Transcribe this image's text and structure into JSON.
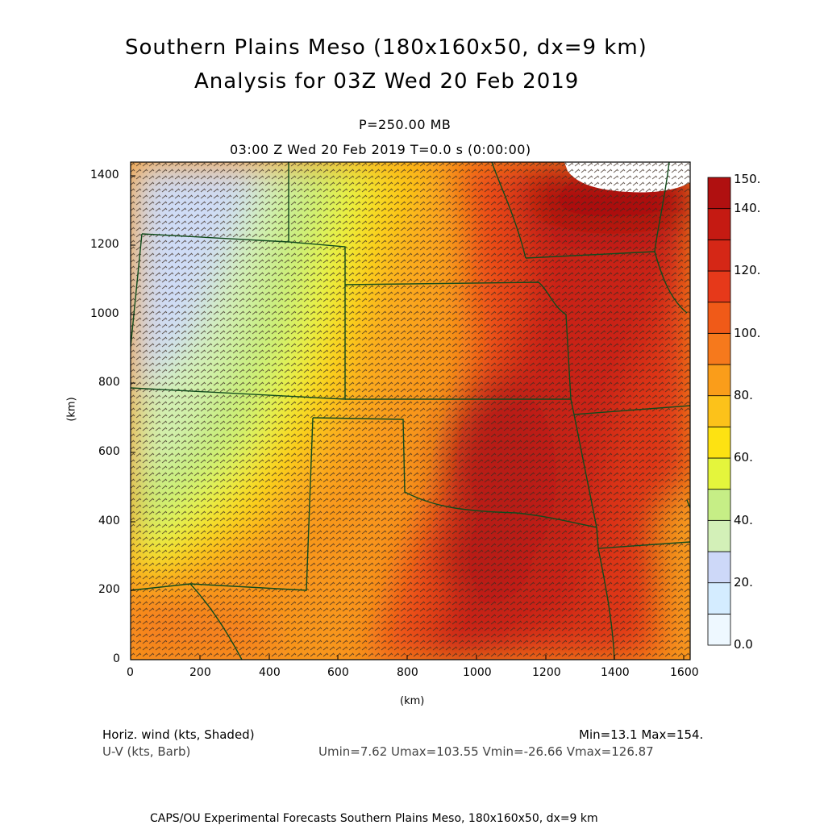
{
  "header": {
    "title_line1": "Southern Plains Meso (180x160x50, dx=9 km)",
    "title_line2": "Analysis for 03Z Wed 20 Feb 2019",
    "level": "P=250.00 MB",
    "time": "03:00 Z Wed 20 Feb 2019    T=0.0 s (0:00:00)"
  },
  "chart_data": {
    "type": "heatmap",
    "xlabel": "(km)",
    "ylabel": "(km)",
    "xlim": [
      0,
      1620
    ],
    "ylim": [
      0,
      1440
    ],
    "x_ticks": [
      "0",
      "200",
      "400",
      "600",
      "800",
      "1000",
      "1200",
      "1400",
      "1600"
    ],
    "y_ticks": [
      "0",
      "200",
      "400",
      "600",
      "800",
      "1000",
      "1200",
      "1400"
    ],
    "colorbar": {
      "labels": [
        "0.0",
        "20.",
        "40.",
        "60.",
        "80.",
        "100.",
        "120.",
        "140.",
        "150."
      ],
      "bins": [
        0,
        10,
        20,
        30,
        40,
        50,
        60,
        70,
        80,
        90,
        100,
        110,
        120,
        130,
        140,
        150
      ],
      "colors": [
        "#eef8ff",
        "#d4ecff",
        "#cdd8f8",
        "#d3f0b8",
        "#c6ee86",
        "#e4f53c",
        "#fde212",
        "#fcc21a",
        "#fa9d1a",
        "#f6791c",
        "#f05a18",
        "#e6391a",
        "#d52716",
        "#c51a12",
        "#b01010"
      ]
    },
    "field": "Horizontal wind speed (kts), shaded, with U-V barbs",
    "min": 13.1,
    "max": 154,
    "umin": 7.62,
    "umax": 103.55,
    "vmin": -26.66,
    "vmax": 126.87
  },
  "legend": {
    "field1": "Horiz. wind (kts, Shaded)",
    "field2": "U-V (kts, Barb)",
    "minmax": "Min=13.1 Max=154.",
    "uv_range": "Umin=7.62 Umax=103.55 Vmin=-26.66 Vmax=126.87"
  },
  "footer": {
    "text": "CAPS/OU Experimental Forecasts  Southern Plains Meso, 180x160x50, dx=9 km"
  }
}
